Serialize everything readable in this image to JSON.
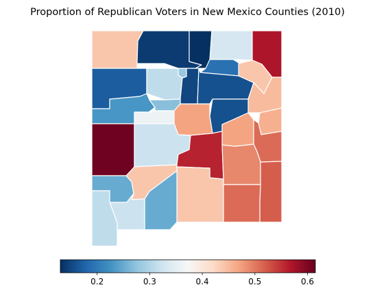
{
  "chart_data": {
    "type": "choropleth",
    "title": "Proportion of Republican Voters in New Mexico Counties (2010)",
    "colormap": "RdBu_r",
    "color_stops": [
      "#053061",
      "#2166ac",
      "#4393c3",
      "#92c5de",
      "#d1e5f0",
      "#f7f7f7",
      "#fddbc7",
      "#f4a582",
      "#d6604d",
      "#b2182b",
      "#67001f"
    ],
    "colorbar": {
      "orientation": "horizontal",
      "vmin": 0.13,
      "vmax": 0.615,
      "ticks": [
        0.2,
        0.3,
        0.4,
        0.5,
        0.6
      ],
      "tick_labels": [
        "0.2",
        "0.3",
        "0.4",
        "0.5",
        "0.6"
      ]
    },
    "regions": [
      {
        "id": "san-juan",
        "value": 0.44
      },
      {
        "id": "rio-arriba",
        "value": 0.14
      },
      {
        "id": "taos",
        "value": 0.13
      },
      {
        "id": "colfax",
        "value": 0.33
      },
      {
        "id": "union",
        "value": 0.57
      },
      {
        "id": "mora",
        "value": 0.19
      },
      {
        "id": "los-alamos",
        "value": 0.28
      },
      {
        "id": "mckinley",
        "value": 0.17
      },
      {
        "id": "sandoval",
        "value": 0.31
      },
      {
        "id": "santa-fe",
        "value": 0.15
      },
      {
        "id": "san-miguel",
        "value": 0.16
      },
      {
        "id": "harding",
        "value": 0.44
      },
      {
        "id": "cibola",
        "value": 0.23
      },
      {
        "id": "bernalillo",
        "value": 0.27
      },
      {
        "id": "valencia",
        "value": 0.36
      },
      {
        "id": "torrance",
        "value": 0.47
      },
      {
        "id": "guadalupe",
        "value": 0.16
      },
      {
        "id": "quay",
        "value": 0.45
      },
      {
        "id": "curry",
        "value": 0.46
      },
      {
        "id": "de-baca",
        "value": 0.47
      },
      {
        "id": "roosevelt",
        "value": 0.51
      },
      {
        "id": "catron",
        "value": 0.61
      },
      {
        "id": "socorro",
        "value": 0.32
      },
      {
        "id": "lincoln",
        "value": 0.56
      },
      {
        "id": "chaves",
        "value": 0.49
      },
      {
        "id": "sierra",
        "value": 0.44
      },
      {
        "id": "grant",
        "value": 0.25
      },
      {
        "id": "otero",
        "value": 0.44
      },
      {
        "id": "luna",
        "value": 0.32
      },
      {
        "id": "dona-ana",
        "value": 0.25
      },
      {
        "id": "eddy",
        "value": 0.51
      },
      {
        "id": "lea",
        "value": 0.52
      },
      {
        "id": "hidalgo",
        "value": 0.31
      }
    ]
  }
}
